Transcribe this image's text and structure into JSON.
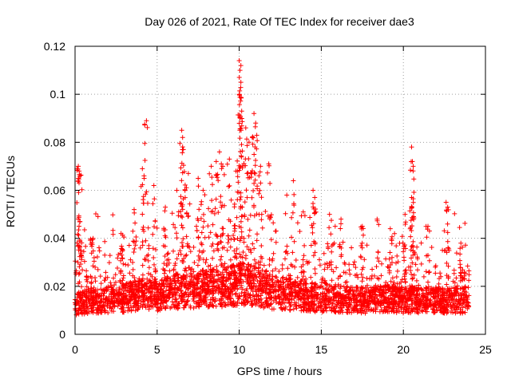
{
  "chart_data": {
    "type": "scatter",
    "title": "Day 026 of 2021, Rate Of TEC Index for receiver dae3",
    "xlabel": "GPS time / hours",
    "ylabel": "ROTI / TECUs",
    "xlim": [
      0,
      25
    ],
    "ylim": [
      0,
      0.12
    ],
    "xticks": [
      "0",
      "5",
      "10",
      "15",
      "20",
      "25"
    ],
    "yticks": [
      "0",
      "0.02",
      "0.04",
      "0.06",
      "0.08",
      "0.1",
      "0.12"
    ],
    "grid": true,
    "marker": "plus",
    "marker_color": "#ff0000",
    "x_coverage": [
      0,
      24
    ],
    "series": [
      {
        "baseline_profile": [
          [
            0,
            0.01
          ],
          [
            1,
            0.012
          ],
          [
            2,
            0.012
          ],
          [
            3,
            0.013
          ],
          [
            4,
            0.015
          ],
          [
            5,
            0.014
          ],
          [
            6,
            0.016
          ],
          [
            7,
            0.016
          ],
          [
            8,
            0.018
          ],
          [
            9,
            0.018
          ],
          [
            10,
            0.02
          ],
          [
            11,
            0.019
          ],
          [
            12,
            0.016
          ],
          [
            13,
            0.015
          ],
          [
            14,
            0.014
          ],
          [
            15,
            0.013
          ],
          [
            16,
            0.013
          ],
          [
            17,
            0.012
          ],
          [
            18,
            0.012
          ],
          [
            19,
            0.013
          ],
          [
            20,
            0.012
          ],
          [
            21,
            0.012
          ],
          [
            22,
            0.012
          ],
          [
            23,
            0.012
          ],
          [
            24,
            0.012
          ]
        ],
        "peaks": [
          {
            "x": 0.2,
            "y": 0.07
          },
          {
            "x": 0.25,
            "y": 0.068
          },
          {
            "x": 0.3,
            "y": 0.066
          },
          {
            "x": 0.3,
            "y": 0.047
          },
          {
            "x": 1.1,
            "y": 0.04
          },
          {
            "x": 2.8,
            "y": 0.042
          },
          {
            "x": 3.6,
            "y": 0.052
          },
          {
            "x": 4.1,
            "y": 0.069
          },
          {
            "x": 4.2,
            "y": 0.066
          },
          {
            "x": 4.35,
            "y": 0.089
          },
          {
            "x": 4.8,
            "y": 0.062
          },
          {
            "x": 5.5,
            "y": 0.053
          },
          {
            "x": 6.2,
            "y": 0.06
          },
          {
            "x": 6.5,
            "y": 0.085
          },
          {
            "x": 6.55,
            "y": 0.082
          },
          {
            "x": 6.6,
            "y": 0.077
          },
          {
            "x": 6.9,
            "y": 0.067
          },
          {
            "x": 7.5,
            "y": 0.065
          },
          {
            "x": 7.8,
            "y": 0.06
          },
          {
            "x": 8.3,
            "y": 0.07
          },
          {
            "x": 8.6,
            "y": 0.072
          },
          {
            "x": 8.8,
            "y": 0.076
          },
          {
            "x": 9.0,
            "y": 0.07
          },
          {
            "x": 9.4,
            "y": 0.073
          },
          {
            "x": 9.8,
            "y": 0.068
          },
          {
            "x": 10.0,
            "y": 0.114
          },
          {
            "x": 10.1,
            "y": 0.112
          },
          {
            "x": 10.05,
            "y": 0.11
          },
          {
            "x": 10.1,
            "y": 0.105
          },
          {
            "x": 10.0,
            "y": 0.1
          },
          {
            "x": 10.15,
            "y": 0.093
          },
          {
            "x": 10.4,
            "y": 0.086
          },
          {
            "x": 10.6,
            "y": 0.08
          },
          {
            "x": 10.9,
            "y": 0.092
          },
          {
            "x": 11.0,
            "y": 0.088
          },
          {
            "x": 10.8,
            "y": 0.082
          },
          {
            "x": 11.3,
            "y": 0.07
          },
          {
            "x": 11.8,
            "y": 0.071
          },
          {
            "x": 12.9,
            "y": 0.058
          },
          {
            "x": 13.3,
            "y": 0.064
          },
          {
            "x": 13.9,
            "y": 0.051
          },
          {
            "x": 14.5,
            "y": 0.06
          },
          {
            "x": 14.6,
            "y": 0.057
          },
          {
            "x": 15.5,
            "y": 0.05
          },
          {
            "x": 16.2,
            "y": 0.048
          },
          {
            "x": 17.5,
            "y": 0.045
          },
          {
            "x": 18.4,
            "y": 0.048
          },
          {
            "x": 19.2,
            "y": 0.044
          },
          {
            "x": 20.1,
            "y": 0.05
          },
          {
            "x": 20.5,
            "y": 0.078
          },
          {
            "x": 20.55,
            "y": 0.072
          },
          {
            "x": 20.6,
            "y": 0.07
          },
          {
            "x": 20.5,
            "y": 0.057
          },
          {
            "x": 21.5,
            "y": 0.045
          },
          {
            "x": 22.6,
            "y": 0.055
          },
          {
            "x": 22.7,
            "y": 0.053
          },
          {
            "x": 23.5,
            "y": 0.038
          }
        ]
      }
    ]
  }
}
